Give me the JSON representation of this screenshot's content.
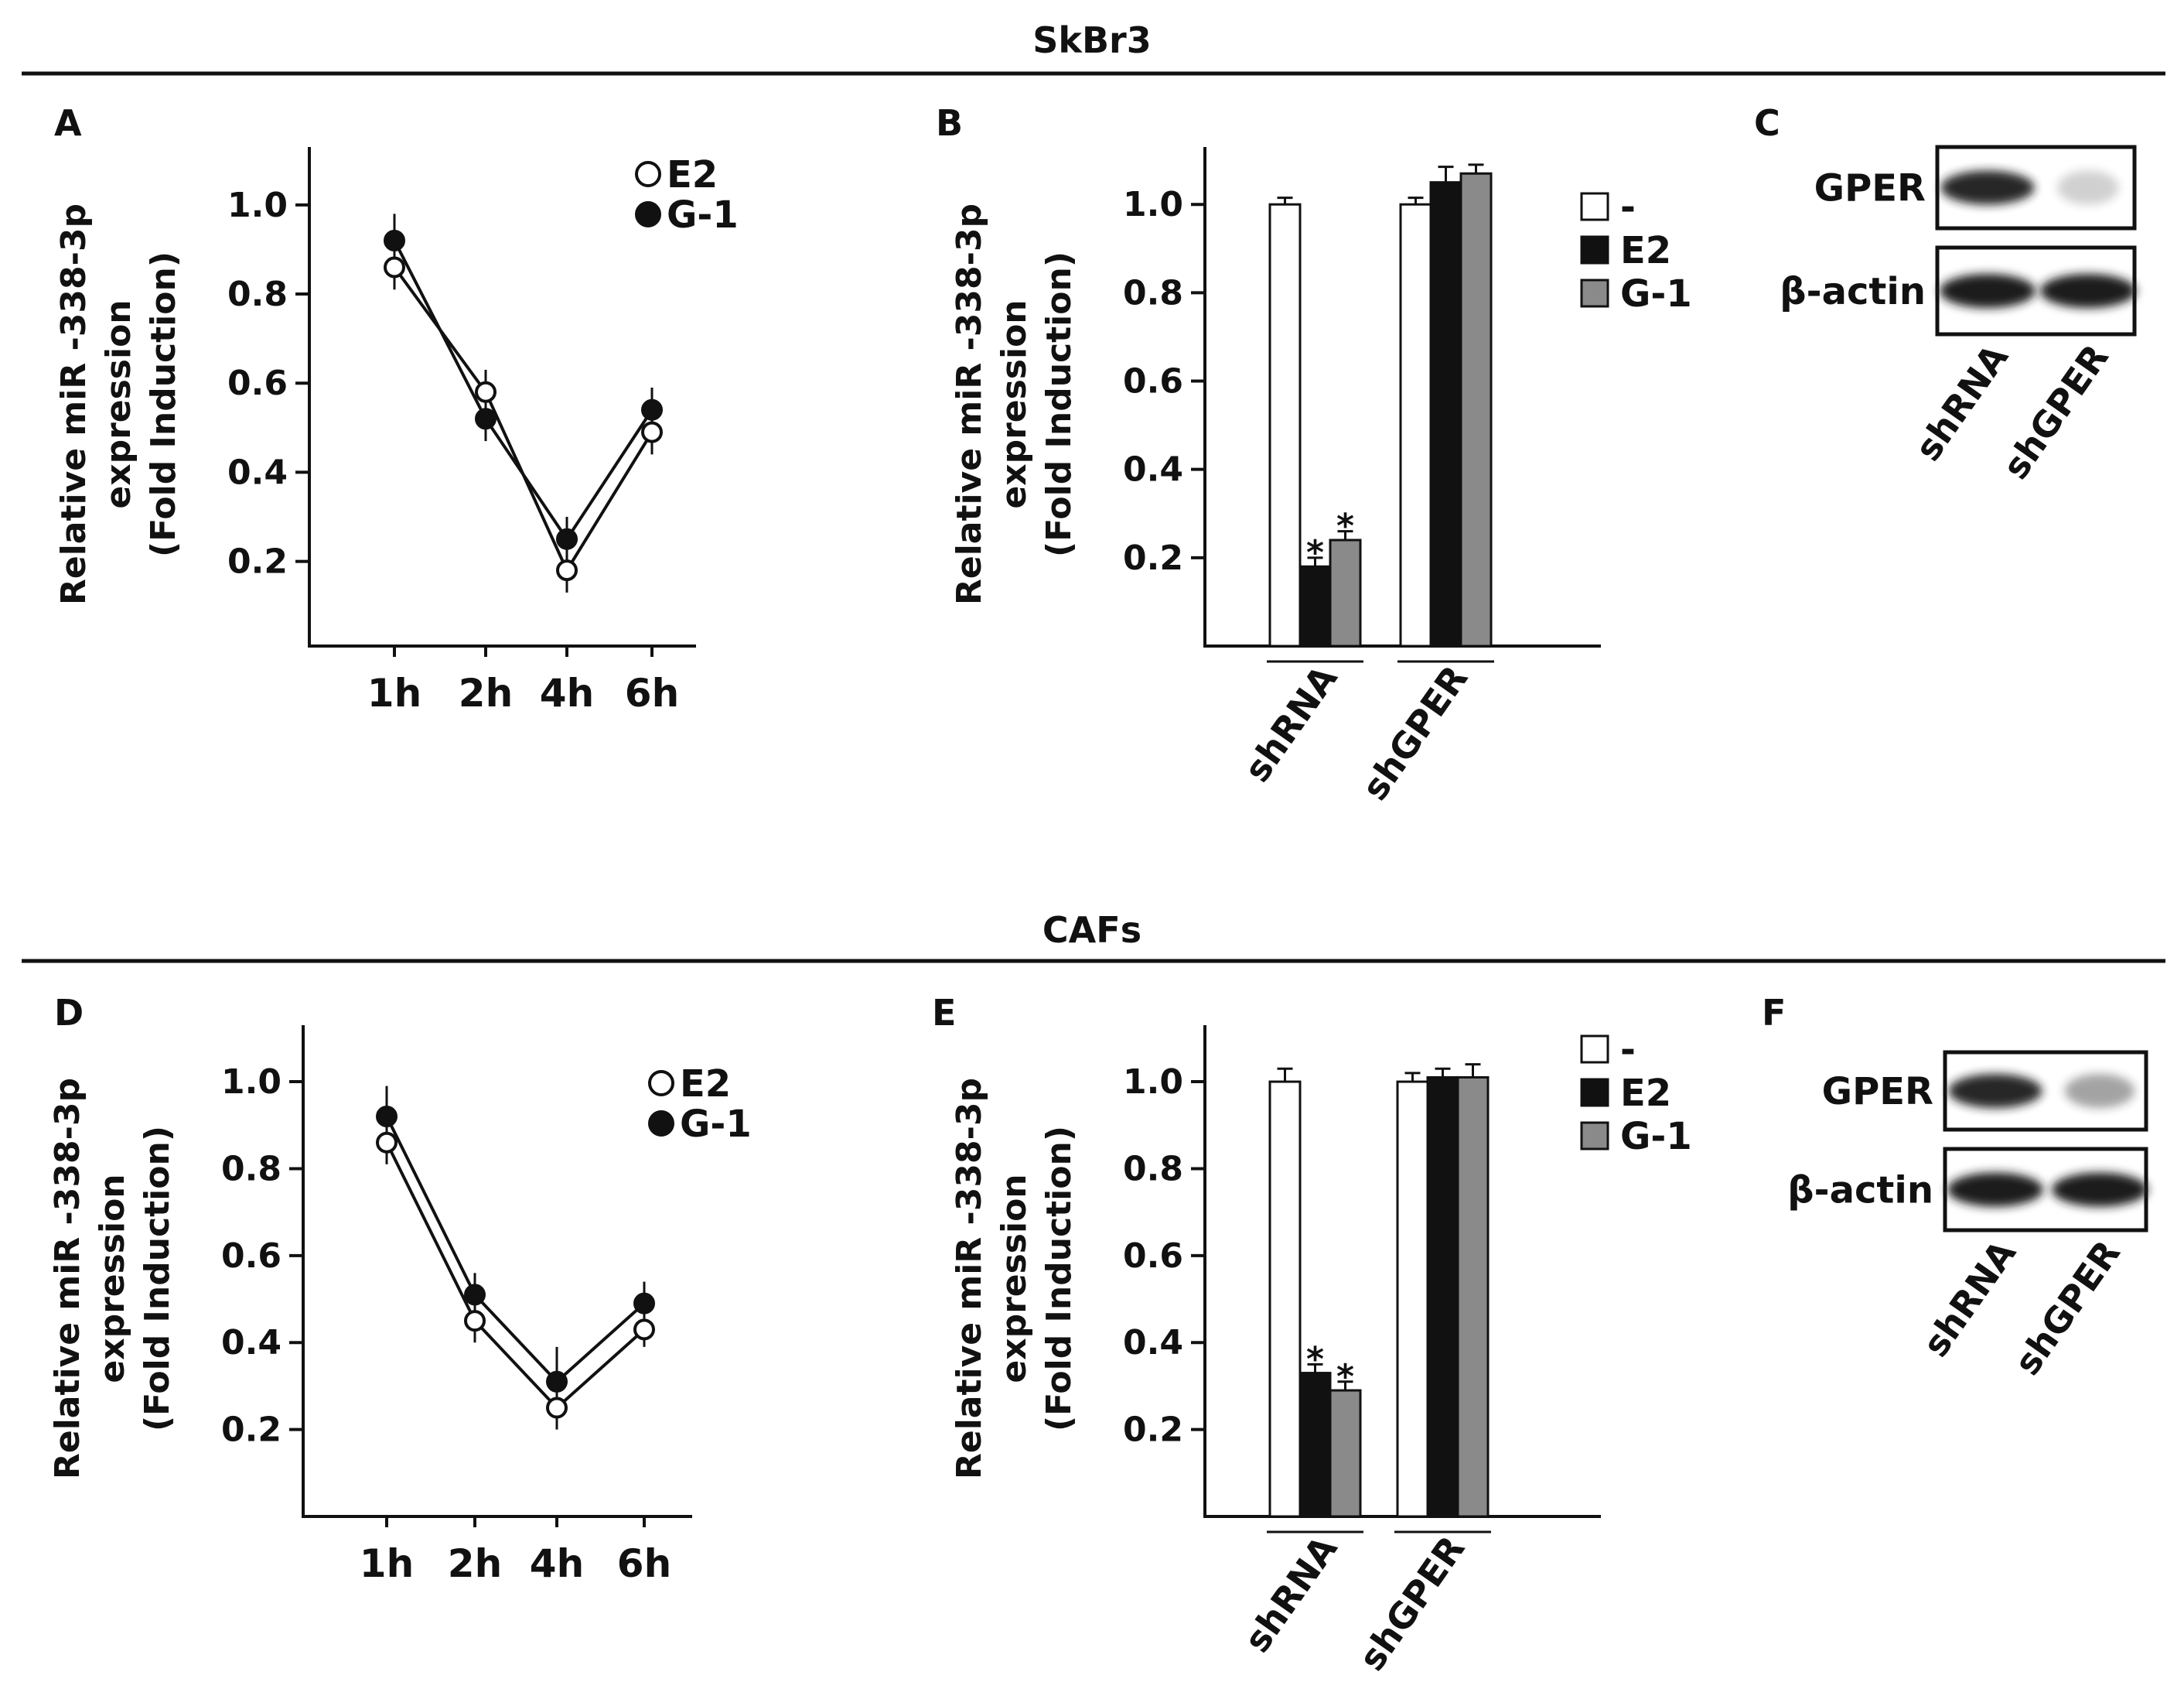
{
  "sections": [
    {
      "title": "SkBr3"
    },
    {
      "title": "CAFs"
    }
  ],
  "colors": {
    "ink": "#111111",
    "white_fill": "#ffffff",
    "black_fill": "#111111",
    "grey_fill": "#8a8a8a"
  },
  "chart_data": [
    {
      "panel": "A",
      "type": "line",
      "ylabel": [
        "Relative miR -338-3p",
        "expression",
        "(Fold Induction)"
      ],
      "categories": [
        "1h",
        "2h",
        "4h",
        "6h"
      ],
      "yticks": [
        "0.2",
        "0.4",
        "0.6",
        "0.8",
        "1.0"
      ],
      "ylim": [
        0.01,
        1.13
      ],
      "series": [
        {
          "name": "E2",
          "marker": "open-circle",
          "values": [
            0.86,
            0.58,
            0.18,
            0.49
          ],
          "errors": [
            0.05,
            0.05,
            0.05,
            0.05
          ]
        },
        {
          "name": "G-1",
          "marker": "filled-circle",
          "values": [
            0.92,
            0.52,
            0.25,
            0.54
          ],
          "errors": [
            0.06,
            0.05,
            0.05,
            0.05
          ]
        }
      ],
      "legend_position": "top-right"
    },
    {
      "panel": "B",
      "type": "bar",
      "ylabel": [
        "Relative miR -338-3p",
        "expression",
        "(Fold Induction)"
      ],
      "groups": [
        "shRNA",
        "shGPER"
      ],
      "yticks": [
        "0.2",
        "0.4",
        "0.6",
        "0.8",
        "1.0"
      ],
      "ylim": [
        0.0,
        1.13
      ],
      "series": [
        {
          "name": "-",
          "fill": "white",
          "values": [
            1.0,
            1.0
          ],
          "errors": [
            0.015,
            0.015
          ]
        },
        {
          "name": "E2",
          "fill": "black",
          "values": [
            0.18,
            1.05
          ],
          "errors": [
            0.02,
            0.035
          ]
        },
        {
          "name": "G-1",
          "fill": "grey",
          "values": [
            0.24,
            1.07
          ],
          "errors": [
            0.02,
            0.02
          ]
        }
      ],
      "significance": [
        {
          "group": "shRNA",
          "series": "E2",
          "label": "*"
        },
        {
          "group": "shRNA",
          "series": "G-1",
          "label": "*"
        }
      ],
      "legend_position": "top-right"
    },
    {
      "panel": "D",
      "type": "line",
      "ylabel": [
        "Relative miR -338-3p",
        "expression",
        "(Fold Induction)"
      ],
      "categories": [
        "1h",
        "2h",
        "4h",
        "6h"
      ],
      "yticks": [
        "0.2",
        "0.4",
        "0.6",
        "0.8",
        "1.0"
      ],
      "ylim": [
        0.0,
        1.13
      ],
      "series": [
        {
          "name": "E2",
          "marker": "open-circle",
          "values": [
            0.86,
            0.45,
            0.25,
            0.43
          ],
          "errors": [
            0.05,
            0.05,
            0.05,
            0.04
          ]
        },
        {
          "name": "G-1",
          "marker": "filled-circle",
          "values": [
            0.92,
            0.51,
            0.31,
            0.49
          ],
          "errors": [
            0.07,
            0.05,
            0.08,
            0.05
          ]
        }
      ],
      "legend_position": "top-right"
    },
    {
      "panel": "E",
      "type": "bar",
      "ylabel": [
        "Relative miR -338-3p",
        "expression",
        "(Fold Induction)"
      ],
      "groups": [
        "shRNA",
        "shGPER"
      ],
      "yticks": [
        "0.2",
        "0.4",
        "0.6",
        "0.8",
        "1.0"
      ],
      "ylim": [
        0.0,
        1.13
      ],
      "series": [
        {
          "name": "-",
          "fill": "white",
          "values": [
            1.0,
            1.0
          ],
          "errors": [
            0.03,
            0.02
          ]
        },
        {
          "name": "E2",
          "fill": "black",
          "values": [
            0.33,
            1.01
          ],
          "errors": [
            0.02,
            0.02
          ]
        },
        {
          "name": "G-1",
          "fill": "grey",
          "values": [
            0.29,
            1.01
          ],
          "errors": [
            0.02,
            0.03
          ]
        }
      ],
      "significance": [
        {
          "group": "shRNA",
          "series": "E2",
          "label": "*"
        },
        {
          "group": "shRNA",
          "series": "G-1",
          "label": "*"
        }
      ],
      "legend_position": "top-right"
    }
  ],
  "blots": [
    {
      "panel": "C",
      "rows": [
        {
          "label": "GPER",
          "intensities": [
            0.95,
            0.2
          ]
        },
        {
          "label": "β-actin",
          "intensities": [
            1.0,
            1.0
          ]
        }
      ],
      "lanes": [
        "shRNA",
        "shGPER"
      ]
    },
    {
      "panel": "F",
      "rows": [
        {
          "label": "GPER",
          "intensities": [
            0.95,
            0.4
          ]
        },
        {
          "label": "β-actin",
          "intensities": [
            1.0,
            1.0
          ]
        }
      ],
      "lanes": [
        "shRNA",
        "shGPER"
      ]
    }
  ]
}
